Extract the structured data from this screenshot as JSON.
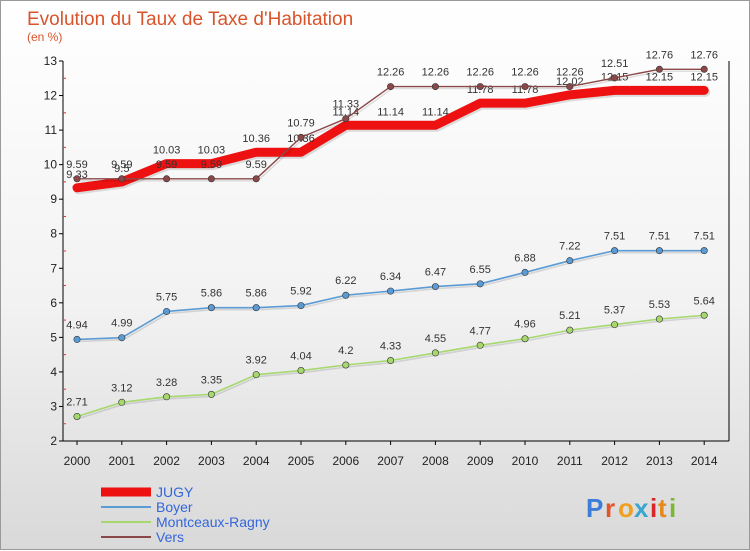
{
  "chart_data": {
    "type": "line",
    "title": "Evolution du Taux de Taxe d'Habitation",
    "subtitle": "(en %)",
    "x": [
      "2000",
      "2001",
      "2002",
      "2003",
      "2004",
      "2005",
      "2006",
      "2007",
      "2008",
      "2009",
      "2010",
      "2011",
      "2012",
      "2013",
      "2014"
    ],
    "ylim": [
      2,
      13
    ],
    "yticks": [
      2,
      3,
      4,
      5,
      6,
      7,
      8,
      9,
      10,
      11,
      12,
      13
    ],
    "grid": false,
    "legend_position": "bottom-left",
    "series": [
      {
        "name": "JUGY",
        "color": "#ee1111",
        "values": [
          9.33,
          9.5,
          10.03,
          10.03,
          10.36,
          10.36,
          11.14,
          11.14,
          11.14,
          11.78,
          11.78,
          12.02,
          12.15,
          12.15,
          12.15
        ],
        "labels": [
          "9.33",
          "9.5",
          "10.03",
          "10.03",
          "10.36",
          "10.36",
          "11.14",
          "11.14",
          "11.14",
          "11.78",
          "11.78",
          "12.02",
          "12.15",
          "12.15",
          "12.15"
        ]
      },
      {
        "name": "Boyer",
        "color": "#5b9bd5",
        "values": [
          4.94,
          4.99,
          5.75,
          5.86,
          5.86,
          5.92,
          6.22,
          6.34,
          6.47,
          6.55,
          6.88,
          7.22,
          7.51,
          7.51,
          7.51
        ],
        "labels": [
          "4.94",
          "4.99",
          "5.75",
          "5.86",
          "5.86",
          "5.92",
          "6.22",
          "6.34",
          "6.47",
          "6.55",
          "6.88",
          "7.22",
          "7.51",
          "7.51",
          "7.51"
        ]
      },
      {
        "name": "Montceaux-Ragny",
        "color": "#a6d86e",
        "values": [
          2.71,
          3.12,
          3.28,
          3.35,
          3.92,
          4.04,
          4.2,
          4.33,
          4.55,
          4.77,
          4.96,
          5.21,
          5.37,
          5.53,
          5.64
        ],
        "labels": [
          "2.71",
          "3.12",
          "3.28",
          "3.35",
          "3.92",
          "4.04",
          "4.2",
          "4.33",
          "4.55",
          "4.77",
          "4.96",
          "5.21",
          "5.37",
          "5.53",
          "5.64"
        ]
      },
      {
        "name": "Vers",
        "color": "#8b4848",
        "values": [
          9.59,
          9.59,
          9.59,
          9.59,
          9.59,
          10.79,
          11.33,
          12.26,
          12.26,
          12.26,
          12.26,
          12.26,
          12.51,
          12.76,
          12.76
        ],
        "labels": [
          "9.59",
          "9.59",
          "9.59",
          "9.59",
          "9.59",
          "10.79",
          "11.33",
          "12.26",
          "12.26",
          "12.26",
          "12.26",
          "12.26",
          "12.51",
          "12.76",
          "12.76"
        ]
      }
    ]
  },
  "logo": {
    "text": "Proxiti",
    "letters": [
      "P",
      "r",
      "o",
      "x",
      "i",
      "t",
      "i"
    ],
    "colors": [
      "#3b7dd8",
      "#e2542a",
      "#f0a020",
      "#3aa6d0",
      "#d8262a",
      "#e58a1a",
      "#7cb832"
    ]
  }
}
